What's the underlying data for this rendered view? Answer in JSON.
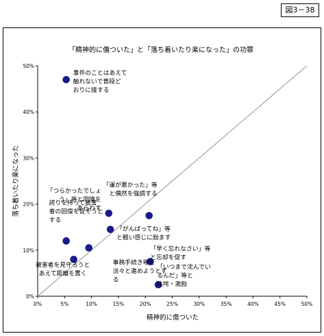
{
  "figure_label": "図3－38",
  "chart_data": {
    "type": "scatter",
    "title": "「精神的に傷ついた」と「落ち着いたり楽になった」の功罪",
    "xlabel": "精神的に傷ついた",
    "ylabel": "落ち着いたり楽になった",
    "xlim": [
      0,
      50
    ],
    "ylim": [
      0,
      50
    ],
    "x_ticks": [
      "0%",
      "5%",
      "10%",
      "15%",
      "20%",
      "25%",
      "30%",
      "35%",
      "40%",
      "45%",
      "50%"
    ],
    "y_ticks": [
      "0%",
      "10%",
      "20%",
      "30%",
      "40%",
      "50%"
    ],
    "reference_line": "y = x",
    "grid": false,
    "marker_color": "#1a1a8c",
    "points": [
      {
        "x": 5.3,
        "y": 47.0,
        "label": [
          "事件のことはあえて",
          "触れないで普段ど",
          "おりに接する"
        ]
      },
      {
        "x": 13.2,
        "y": 18.0,
        "label": [
          "「つらかったでしょ",
          "う」等と同情を",
          "あらわす"
        ]
      },
      {
        "x": 20.7,
        "y": 17.5,
        "label": [
          "「運が悪かった」等",
          "と偶然を強調する"
        ]
      },
      {
        "x": 5.3,
        "y": 12.0,
        "label": [
          "誇りを持って被害",
          "者の回復を促そうと",
          "する"
        ]
      },
      {
        "x": 13.5,
        "y": 14.5,
        "label": [
          "「がんばってね」等",
          "と軽い感じに励ます"
        ]
      },
      {
        "x": 9.5,
        "y": 10.5,
        "label": [
          "事務手続き等を",
          "淡々と進めようとす",
          "る"
        ]
      },
      {
        "x": 6.7,
        "y": 8.0,
        "label": [
          "被害者を見守ろうと",
          "あえて距離を置く"
        ]
      },
      {
        "x": 20.9,
        "y": 7.5,
        "label": [
          "「早く忘れなさい」等",
          "と忘却を促す"
        ]
      },
      {
        "x": 22.4,
        "y": 2.5,
        "label": [
          "「いつまで沈んでい",
          "るんだ」等と",
          "叱咤・激励"
        ]
      }
    ]
  }
}
